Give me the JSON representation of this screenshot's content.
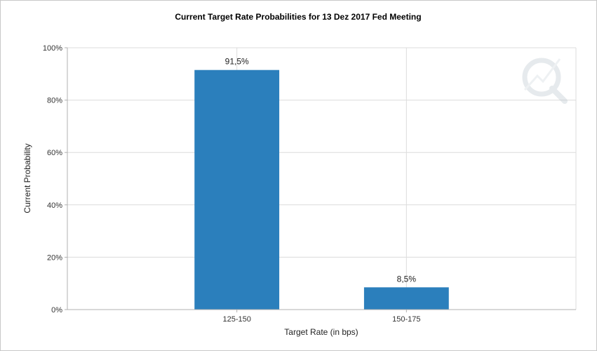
{
  "chart_data": {
    "type": "bar",
    "title": "Current Target Rate Probabilities for 13 Dez 2017 Fed Meeting",
    "xlabel": "Target Rate (in bps)",
    "ylabel": "Current Probability",
    "categories": [
      "125-150",
      "150-175"
    ],
    "values": [
      91.5,
      8.5
    ],
    "value_labels": [
      "91,5%",
      "8,5%"
    ],
    "ylim": [
      0,
      100
    ],
    "yticks": [
      0,
      20,
      40,
      60,
      80,
      100
    ],
    "ytick_labels": [
      "0%",
      "20%",
      "40%",
      "60%",
      "80%",
      "100%"
    ],
    "grid": true,
    "legend": "none",
    "bar_color": "#2b7fbc",
    "watermark_icon": "quikstrike-logo-icon"
  }
}
